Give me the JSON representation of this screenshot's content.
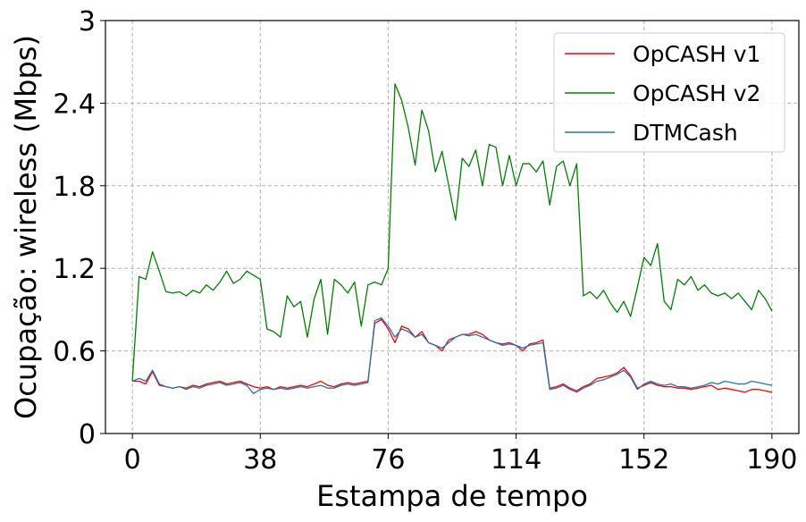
{
  "chart_data": {
    "type": "line",
    "xlabel": "Estampa de tempo",
    "ylabel": "Ocupação: wireless (Mbps)",
    "xlim": [
      -8,
      198
    ],
    "ylim": [
      0,
      3
    ],
    "xticks": [
      0,
      38,
      76,
      114,
      152,
      190
    ],
    "yticks": [
      0,
      0.6,
      1.2,
      1.8,
      2.4,
      3
    ],
    "ytick_labels": [
      "0",
      "0.6",
      "1.2",
      "1.8",
      "2.4",
      "3"
    ],
    "grid": true,
    "legend_position": "top-right",
    "x": [
      0,
      2,
      4,
      6,
      8,
      10,
      12,
      14,
      16,
      18,
      20,
      22,
      24,
      26,
      28,
      30,
      32,
      34,
      36,
      38,
      40,
      42,
      44,
      46,
      48,
      50,
      52,
      54,
      56,
      58,
      60,
      62,
      64,
      66,
      68,
      70,
      72,
      74,
      76,
      78,
      80,
      82,
      84,
      86,
      88,
      90,
      92,
      94,
      96,
      98,
      100,
      102,
      104,
      106,
      108,
      110,
      112,
      114,
      116,
      118,
      120,
      122,
      124,
      126,
      128,
      130,
      132,
      134,
      136,
      138,
      140,
      142,
      144,
      146,
      148,
      150,
      152,
      154,
      156,
      158,
      160,
      162,
      164,
      166,
      168,
      170,
      172,
      174,
      176,
      178,
      180,
      182,
      184,
      186,
      188,
      190
    ],
    "series": [
      {
        "name": "OpCASH v1",
        "color": "#ff0000",
        "values": [
          0.38,
          0.38,
          0.36,
          0.45,
          0.35,
          0.34,
          0.33,
          0.34,
          0.33,
          0.35,
          0.34,
          0.36,
          0.37,
          0.38,
          0.36,
          0.37,
          0.38,
          0.36,
          0.34,
          0.33,
          0.34,
          0.32,
          0.34,
          0.33,
          0.34,
          0.35,
          0.34,
          0.36,
          0.38,
          0.35,
          0.34,
          0.36,
          0.37,
          0.36,
          0.37,
          0.38,
          0.8,
          0.83,
          0.76,
          0.66,
          0.78,
          0.76,
          0.7,
          0.74,
          0.66,
          0.64,
          0.6,
          0.68,
          0.7,
          0.72,
          0.72,
          0.74,
          0.72,
          0.68,
          0.66,
          0.65,
          0.66,
          0.64,
          0.6,
          0.65,
          0.66,
          0.68,
          0.33,
          0.34,
          0.36,
          0.33,
          0.31,
          0.34,
          0.36,
          0.4,
          0.41,
          0.42,
          0.44,
          0.48,
          0.42,
          0.33,
          0.35,
          0.37,
          0.35,
          0.34,
          0.34,
          0.33,
          0.33,
          0.32,
          0.33,
          0.34,
          0.35,
          0.32,
          0.33,
          0.32,
          0.31,
          0.3,
          0.32,
          0.32,
          0.31,
          0.3
        ]
      },
      {
        "name": "OpCASH v2",
        "color": "#008000",
        "values": [
          0.38,
          1.14,
          1.12,
          1.32,
          1.18,
          1.03,
          1.02,
          1.03,
          1.0,
          1.04,
          1.02,
          1.08,
          1.04,
          1.1,
          1.18,
          1.09,
          1.12,
          1.18,
          1.15,
          1.12,
          0.76,
          0.74,
          0.7,
          1.0,
          0.92,
          0.96,
          0.7,
          0.98,
          1.12,
          0.72,
          1.12,
          1.08,
          1.02,
          1.1,
          0.78,
          1.08,
          1.1,
          1.08,
          1.2,
          2.54,
          2.42,
          2.22,
          1.95,
          2.35,
          2.2,
          1.9,
          2.05,
          1.8,
          1.55,
          2.0,
          1.94,
          2.06,
          1.8,
          2.1,
          2.08,
          1.8,
          2.02,
          1.8,
          1.96,
          1.96,
          1.9,
          1.98,
          1.66,
          1.94,
          1.98,
          1.8,
          1.96,
          1.0,
          1.03,
          0.98,
          1.04,
          0.95,
          0.88,
          0.96,
          0.85,
          1.06,
          1.28,
          1.22,
          1.38,
          0.96,
          0.9,
          1.12,
          1.08,
          1.14,
          1.04,
          1.08,
          1.02,
          1.0,
          1.02,
          0.98,
          1.02,
          0.96,
          0.9,
          1.04,
          0.98,
          0.89
        ]
      },
      {
        "name": "DTMCash",
        "color": "#1f77b4",
        "values": [
          0.38,
          0.4,
          0.38,
          0.46,
          0.36,
          0.34,
          0.33,
          0.34,
          0.32,
          0.34,
          0.33,
          0.35,
          0.36,
          0.37,
          0.35,
          0.36,
          0.37,
          0.35,
          0.29,
          0.32,
          0.33,
          0.32,
          0.33,
          0.32,
          0.33,
          0.34,
          0.33,
          0.34,
          0.35,
          0.33,
          0.33,
          0.35,
          0.36,
          0.35,
          0.36,
          0.37,
          0.82,
          0.84,
          0.78,
          0.7,
          0.76,
          0.74,
          0.7,
          0.72,
          0.66,
          0.64,
          0.62,
          0.66,
          0.7,
          0.72,
          0.71,
          0.72,
          0.7,
          0.68,
          0.66,
          0.64,
          0.65,
          0.64,
          0.62,
          0.64,
          0.65,
          0.66,
          0.32,
          0.33,
          0.35,
          0.32,
          0.3,
          0.33,
          0.35,
          0.38,
          0.39,
          0.41,
          0.43,
          0.46,
          0.41,
          0.32,
          0.36,
          0.38,
          0.36,
          0.35,
          0.36,
          0.34,
          0.34,
          0.33,
          0.34,
          0.35,
          0.37,
          0.36,
          0.38,
          0.37,
          0.36,
          0.36,
          0.38,
          0.37,
          0.36,
          0.35
        ]
      }
    ]
  }
}
